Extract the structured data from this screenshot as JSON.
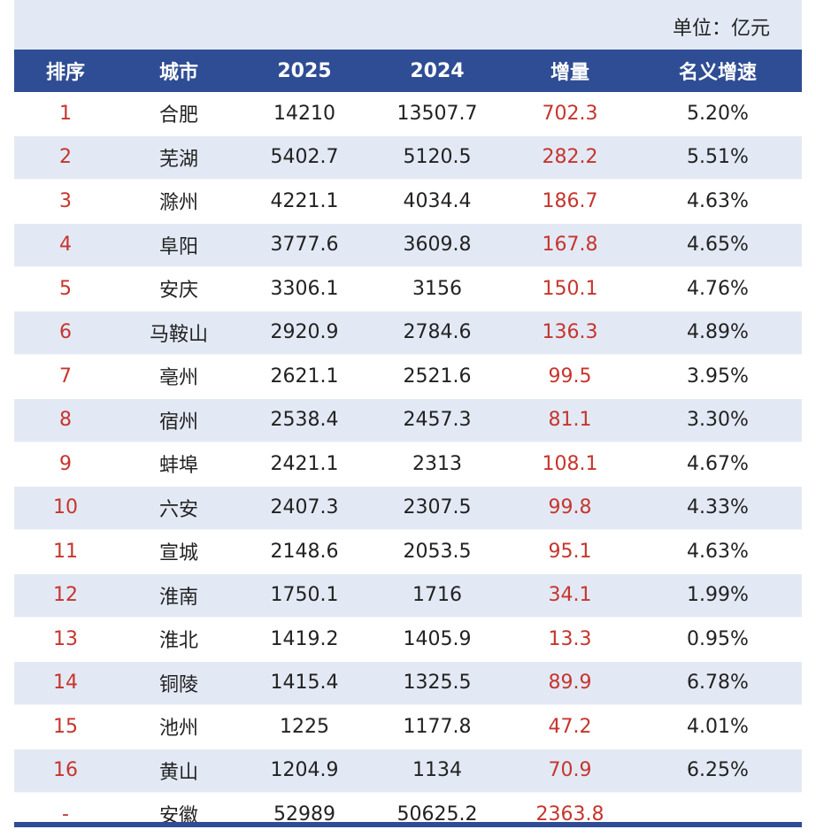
{
  "unit_label": "单位：亿元",
  "colors": {
    "header_bg": "#2f4d94",
    "alt_row_bg": "#e3e9f4",
    "accent_red": "#c6352d"
  },
  "headers": [
    "排序",
    "城市",
    "2025",
    "2024",
    "增量",
    "名义增速"
  ],
  "rows": [
    {
      "rank": "1",
      "city": "合肥",
      "y2025": "14210",
      "y2024": "13507.7",
      "increase": "702.3",
      "growth": "5.20%"
    },
    {
      "rank": "2",
      "city": "芜湖",
      "y2025": "5402.7",
      "y2024": "5120.5",
      "increase": "282.2",
      "growth": "5.51%"
    },
    {
      "rank": "3",
      "city": "滁州",
      "y2025": "4221.1",
      "y2024": "4034.4",
      "increase": "186.7",
      "growth": "4.63%"
    },
    {
      "rank": "4",
      "city": "阜阳",
      "y2025": "3777.6",
      "y2024": "3609.8",
      "increase": "167.8",
      "growth": "4.65%"
    },
    {
      "rank": "5",
      "city": "安庆",
      "y2025": "3306.1",
      "y2024": "3156",
      "increase": "150.1",
      "growth": "4.76%"
    },
    {
      "rank": "6",
      "city": "马鞍山",
      "y2025": "2920.9",
      "y2024": "2784.6",
      "increase": "136.3",
      "growth": "4.89%"
    },
    {
      "rank": "7",
      "city": "亳州",
      "y2025": "2621.1",
      "y2024": "2521.6",
      "increase": "99.5",
      "growth": "3.95%"
    },
    {
      "rank": "8",
      "city": "宿州",
      "y2025": "2538.4",
      "y2024": "2457.3",
      "increase": "81.1",
      "growth": "3.30%"
    },
    {
      "rank": "9",
      "city": "蚌埠",
      "y2025": "2421.1",
      "y2024": "2313",
      "increase": "108.1",
      "growth": "4.67%"
    },
    {
      "rank": "10",
      "city": "六安",
      "y2025": "2407.3",
      "y2024": "2307.5",
      "increase": "99.8",
      "growth": "4.33%"
    },
    {
      "rank": "11",
      "city": "宣城",
      "y2025": "2148.6",
      "y2024": "2053.5",
      "increase": "95.1",
      "growth": "4.63%"
    },
    {
      "rank": "12",
      "city": "淮南",
      "y2025": "1750.1",
      "y2024": "1716",
      "increase": "34.1",
      "growth": "1.99%"
    },
    {
      "rank": "13",
      "city": "淮北",
      "y2025": "1419.2",
      "y2024": "1405.9",
      "increase": "13.3",
      "growth": "0.95%"
    },
    {
      "rank": "14",
      "city": "铜陵",
      "y2025": "1415.4",
      "y2024": "1325.5",
      "increase": "89.9",
      "growth": "6.78%"
    },
    {
      "rank": "15",
      "city": "池州",
      "y2025": "1225",
      "y2024": "1177.8",
      "increase": "47.2",
      "growth": "4.01%"
    },
    {
      "rank": "16",
      "city": "黄山",
      "y2025": "1204.9",
      "y2024": "1134",
      "increase": "70.9",
      "growth": "6.25%"
    },
    {
      "rank": "-",
      "city": "安徽",
      "y2025": "52989",
      "y2024": "50625.2",
      "increase": "2363.8",
      "growth": ""
    }
  ]
}
